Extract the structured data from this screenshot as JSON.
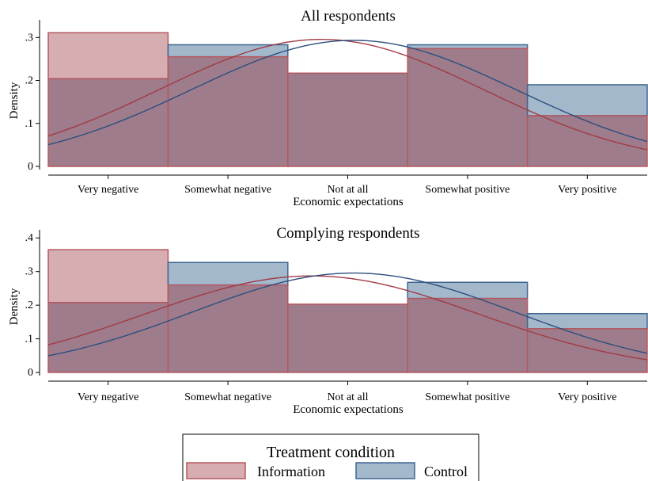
{
  "legend": {
    "title": "Treatment condition",
    "items": [
      {
        "label": "Information",
        "fill": "#C48A90",
        "stroke": "#B5585F"
      },
      {
        "label": "Control",
        "fill": "#7E9AB6",
        "stroke": "#3E6690"
      }
    ]
  },
  "colors": {
    "information_fill": "#C48A90",
    "information_stroke": "#B5585F",
    "information_curve": "#A23A45",
    "control_fill": "#7E9AB6",
    "control_stroke": "#3E6690",
    "control_curve": "#2C4F7E",
    "overlap_fill": "#9E7C8C"
  },
  "chart_data": [
    {
      "type": "bar",
      "title": "All respondents",
      "xlabel": "Economic expectations",
      "ylabel": "Density",
      "categories": [
        "Very negative",
        "Somewhat negative",
        "Not at all",
        "Somewhat positive",
        "Very positive"
      ],
      "ylim": [
        0,
        0.33
      ],
      "yticks": [
        {
          "v": 0,
          "label": "0"
        },
        {
          "v": 0.1,
          "label": ".1"
        },
        {
          "v": 0.2,
          "label": ".2"
        },
        {
          "v": 0.3,
          "label": ".3"
        }
      ],
      "grid": false,
      "series": [
        {
          "name": "Information",
          "values": [
            0.311,
            0.255,
            0.217,
            0.274,
            0.118
          ],
          "curve": {
            "mean": 2.78,
            "sd": 1.35,
            "n": 1.0
          }
        },
        {
          "name": "Control",
          "values": [
            0.204,
            0.283,
            0.217,
            0.283,
            0.19
          ],
          "curve": {
            "mean": 3.05,
            "sd": 1.36,
            "n": 1.0
          }
        }
      ]
    },
    {
      "type": "bar",
      "title": "Complying respondents",
      "xlabel": "Economic expectations",
      "ylabel": "Density",
      "categories": [
        "Very negative",
        "Somewhat negative",
        "Not at all",
        "Somewhat positive",
        "Very positive"
      ],
      "ylim": [
        0,
        0.41
      ],
      "yticks": [
        {
          "v": 0,
          "label": "0"
        },
        {
          "v": 0.1,
          "label": ".1"
        },
        {
          "v": 0.2,
          "label": ".2"
        },
        {
          "v": 0.3,
          "label": ".3"
        },
        {
          "v": 0.4,
          "label": ".4"
        }
      ],
      "grid": false,
      "series": [
        {
          "name": "Information",
          "values": [
            0.365,
            0.26,
            0.203,
            0.22,
            0.13
          ],
          "curve": {
            "mean": 2.7,
            "sd": 1.39,
            "n": 1.0
          }
        },
        {
          "name": "Control",
          "values": [
            0.208,
            0.327,
            0.203,
            0.268,
            0.175
          ],
          "curve": {
            "mean": 3.05,
            "sd": 1.35,
            "n": 1.0
          }
        }
      ]
    }
  ]
}
